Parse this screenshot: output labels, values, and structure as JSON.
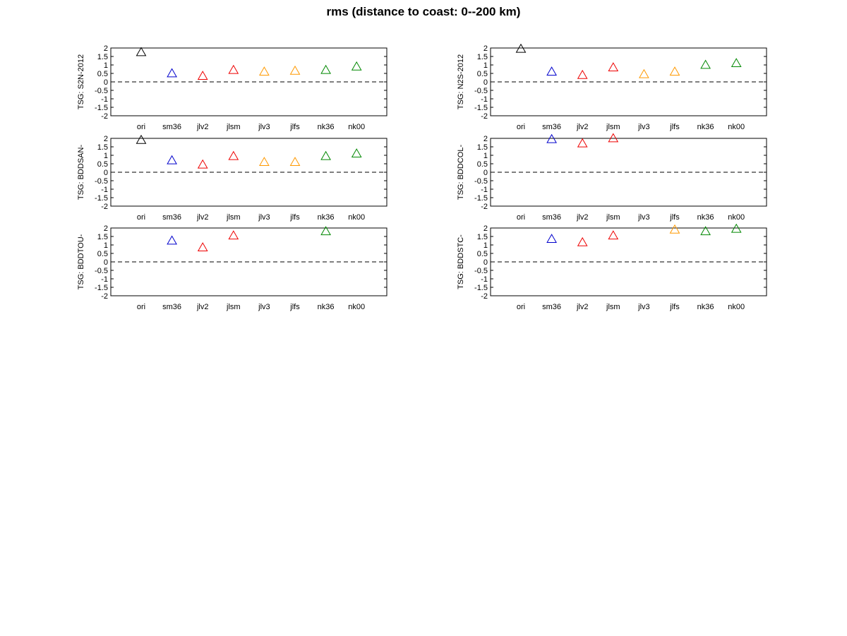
{
  "title": "rms (distance to coast: 0--200 km)",
  "colors": {
    "ori": "#000000",
    "sm36": "#0000cc",
    "jlv2": "#ee0000",
    "jlsm": "#ee0000",
    "jlv3": "#ff9900",
    "jlfs": "#ff9900",
    "nk36": "#008800",
    "nk00": "#008800"
  },
  "chart_data": [
    {
      "type": "scatter",
      "marker": "triangle",
      "ylabel": "TSG: S2N-2012",
      "categories": [
        "ori",
        "sm36",
        "jlv2",
        "jlsm",
        "jlv3",
        "jlfs",
        "nk36",
        "nk00"
      ],
      "values": [
        1.75,
        0.5,
        0.35,
        0.7,
        0.6,
        0.65,
        0.7,
        0.9
      ],
      "ylim": [
        -2,
        2
      ],
      "yticks": [
        "2",
        "1.5",
        "1",
        "0.5",
        "0",
        "-0.5",
        "-1",
        "-1.5",
        "-2"
      ],
      "zero_line": "dashed",
      "grid": false
    },
    {
      "type": "scatter",
      "marker": "triangle",
      "ylabel": "TSG: N2S-2012",
      "categories": [
        "ori",
        "sm36",
        "jlv2",
        "jlsm",
        "jlv3",
        "jlfs",
        "nk36",
        "nk00"
      ],
      "values": [
        1.95,
        0.6,
        0.4,
        0.85,
        0.45,
        0.6,
        1.0,
        1.1
      ],
      "ylim": [
        -2,
        2
      ],
      "yticks": [
        "2",
        "1.5",
        "1",
        "0.5",
        "0",
        "-0.5",
        "-1",
        "-1.5",
        "-2"
      ],
      "zero_line": "dashed",
      "grid": false
    },
    {
      "type": "scatter",
      "marker": "triangle",
      "ylabel": "TSG: BDDSAN-",
      "categories": [
        "ori",
        "sm36",
        "jlv2",
        "jlsm",
        "jlv3",
        "jlfs",
        "nk36",
        "nk00"
      ],
      "values": [
        1.9,
        0.7,
        0.45,
        0.95,
        0.6,
        0.6,
        0.95,
        1.1
      ],
      "ylim": [
        -2,
        2
      ],
      "yticks": [
        "2",
        "1.5",
        "1",
        "0.5",
        "0",
        "-0.5",
        "-1",
        "-1.5",
        "-2"
      ],
      "zero_line": "dashed",
      "grid": false
    },
    {
      "type": "scatter",
      "marker": "triangle",
      "ylabel": "TSG: BDDCOL-",
      "categories": [
        "ori",
        "sm36",
        "jlv2",
        "jlsm",
        "jlv3",
        "jlfs",
        "nk36",
        "nk00"
      ],
      "values": [
        null,
        1.95,
        1.7,
        2.0,
        null,
        null,
        null,
        null
      ],
      "ylim": [
        -2,
        2
      ],
      "yticks": [
        "2",
        "1.5",
        "1",
        "0.5",
        "0",
        "-0.5",
        "-1",
        "-1.5",
        "-2"
      ],
      "zero_line": "dashed",
      "grid": false
    },
    {
      "type": "scatter",
      "marker": "triangle",
      "ylabel": "TSG: BDDTOU-",
      "categories": [
        "ori",
        "sm36",
        "jlv2",
        "jlsm",
        "jlv3",
        "jlfs",
        "nk36",
        "nk00"
      ],
      "values": [
        null,
        1.25,
        0.85,
        1.55,
        null,
        null,
        1.8,
        null
      ],
      "ylim": [
        -2,
        2
      ],
      "yticks": [
        "2",
        "1.5",
        "1",
        "0.5",
        "0",
        "-0.5",
        "-1",
        "-1.5",
        "-2"
      ],
      "zero_line": "dashed",
      "grid": false
    },
    {
      "type": "scatter",
      "marker": "triangle",
      "ylabel": "TSG: BDDSTC-",
      "categories": [
        "ori",
        "sm36",
        "jlv2",
        "jlsm",
        "jlv3",
        "jlfs",
        "nk36",
        "nk00"
      ],
      "values": [
        null,
        1.35,
        1.15,
        1.55,
        null,
        1.9,
        1.8,
        1.95
      ],
      "ylim": [
        -2,
        2
      ],
      "yticks": [
        "2",
        "1.5",
        "1",
        "0.5",
        "0",
        "-0.5",
        "-1",
        "-1.5",
        "-2"
      ],
      "zero_line": "dashed",
      "grid": false
    }
  ]
}
